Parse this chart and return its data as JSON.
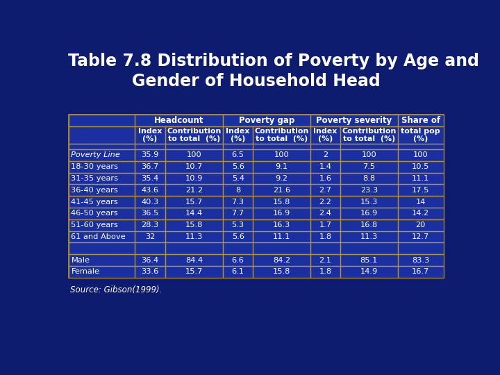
{
  "title_line1": "Table 7.8 Distribution of Poverty by Age and",
  "title_line2": "Gender of Household Head",
  "source": "Source: Gibson(1999).",
  "bg_color": "#0d1c6e",
  "table_bg": "#1a30a0",
  "header_bg": "#1a30a0",
  "border_color": "#b8922a",
  "text_color": "#ffffff",
  "title_color": "#ffffff",
  "rows": [
    [
      "Poverty Line",
      "35.9",
      "100",
      "6.5",
      "100",
      "2",
      "100",
      "100"
    ],
    [
      "18-30 years",
      "36.7",
      "10.7",
      "5.6",
      "9.1",
      "1.4",
      "7.5",
      "10.5"
    ],
    [
      "31-35 years",
      "35.4",
      "10.9",
      "5.4",
      "9.2",
      "1.6",
      "8.8",
      "11.1"
    ],
    [
      "36-40 years",
      "43.6",
      "21.2",
      "8",
      "21.6",
      "2.7",
      "23.3",
      "17.5"
    ],
    [
      "41-45 years",
      "40.3",
      "15.7",
      "7.3",
      "15.8",
      "2.2",
      "15.3",
      "14"
    ],
    [
      "46-50 years",
      "36.5",
      "14.4",
      "7.7",
      "16.9",
      "2.4",
      "16.9",
      "14.2"
    ],
    [
      "51-60 years",
      "28.3",
      "15.8",
      "5.3",
      "16.3",
      "1.7",
      "16.8",
      "20"
    ],
    [
      "61 and Above",
      "32",
      "11.3",
      "5.6",
      "11.1",
      "1.8",
      "11.3",
      "12.7"
    ],
    [
      "",
      "",
      "",
      "",
      "",
      "",
      "",
      ""
    ],
    [
      "Male",
      "36.4",
      "84.4",
      "6.6",
      "84.2",
      "2.1",
      "85.1",
      "83.3"
    ],
    [
      "Female",
      "33.6",
      "15.7",
      "6.1",
      "15.8",
      "1.8",
      "14.9",
      "16.7"
    ]
  ]
}
